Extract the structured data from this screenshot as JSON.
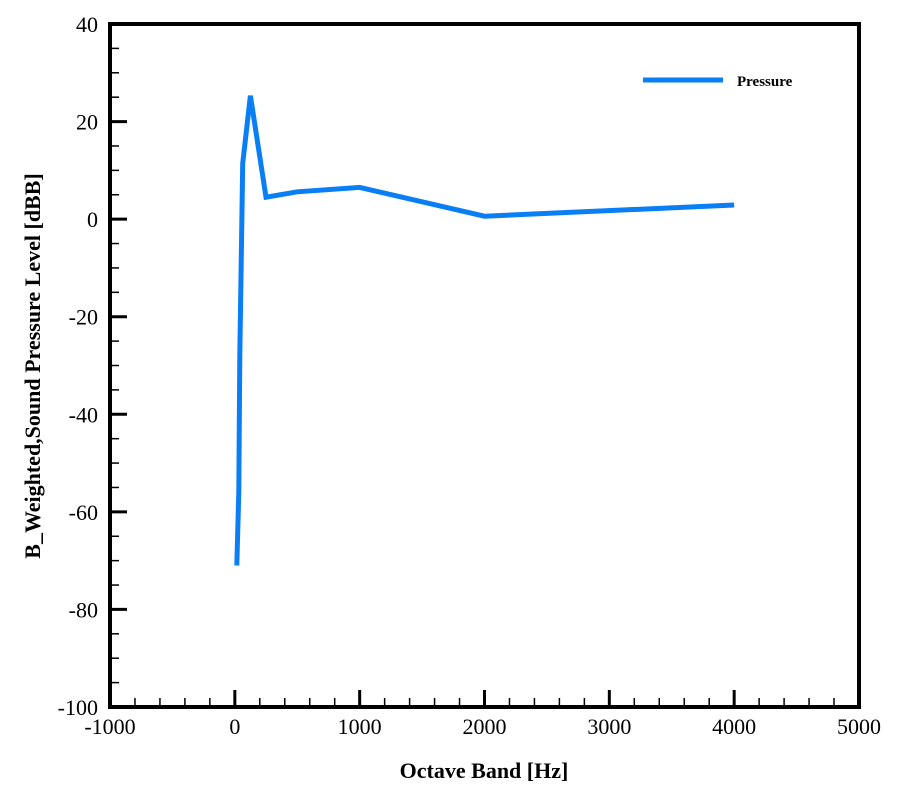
{
  "chart_data": {
    "type": "line",
    "title": "",
    "xlabel": "Octave Band [Hz]",
    "ylabel": "B_Weighted,Sound Pressure Level [dBB]",
    "xlim": [
      -1000,
      5000
    ],
    "ylim": [
      -100,
      40
    ],
    "x_ticks": [
      -1000,
      0,
      1000,
      2000,
      3000,
      4000,
      5000
    ],
    "y_ticks": [
      -100,
      -80,
      -60,
      -40,
      -20,
      0,
      20,
      40
    ],
    "x_minor_step": 200,
    "y_minor_step": 5,
    "grid": false,
    "legend_position": "top-right inside",
    "series": [
      {
        "name": "Pressure",
        "color": "#0A7FF5",
        "x": [
          16,
          31.5,
          40,
          63,
          125,
          250,
          500,
          1000,
          2000,
          4000
        ],
        "values": [
          -71,
          -56,
          -28,
          11.4,
          25.3,
          4.5,
          5.6,
          6.5,
          0.6,
          2.9
        ]
      }
    ]
  },
  "legend": {
    "label": "Pressure"
  },
  "axes": {
    "xlabel": "Octave Band [Hz]",
    "ylabel": "B_Weighted,Sound Pressure Level [dBB]"
  }
}
